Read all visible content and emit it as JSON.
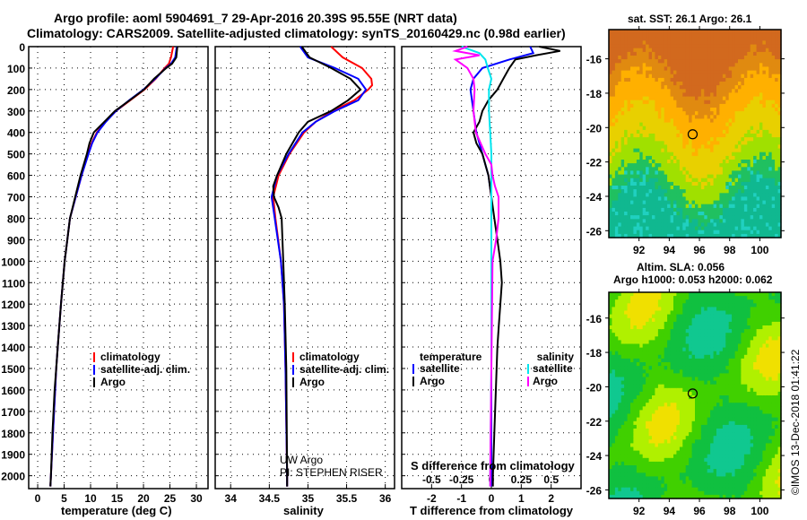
{
  "title": {
    "line1": "Argo profile: aoml 5904691_7 29-Apr-2016 20.39S 95.55E (NRT data)",
    "line2": "Climatology: CARS2009. Satellite-adjusted climatology: synTS_20160429.nc (0.98d earlier)"
  },
  "colors": {
    "climatology": "#ff0000",
    "satellite": "#0000ff",
    "argo": "#000000",
    "sal_satellite": "#00e5ee",
    "sal_argo": "#ff00ff"
  },
  "chart_data": [
    {
      "type": "line",
      "name": "temperature",
      "xlabel": "temperature (deg C)",
      "ylabel": "depth",
      "xlim": [
        -1.7,
        32.2
      ],
      "ylim": [
        0,
        2060
      ],
      "xticks": [
        0,
        5,
        10,
        15,
        20,
        25,
        30
      ],
      "yticks": [
        0,
        100,
        200,
        300,
        400,
        500,
        600,
        700,
        800,
        900,
        1000,
        1100,
        1200,
        1300,
        1400,
        1500,
        1600,
        1700,
        1800,
        1900,
        2000
      ],
      "legend": [
        "climatology",
        "satellite-adj. clim.",
        "Argo"
      ],
      "series": [
        {
          "name": "climatology",
          "color": "#ff0000",
          "depth": [
            0,
            50,
            80,
            100,
            150,
            200,
            250,
            300,
            350,
            400,
            450,
            500,
            600,
            700,
            800,
            900,
            1000,
            1200,
            1400,
            1500,
            1600,
            1800,
            2000,
            2050
          ],
          "values": [
            25.6,
            25.2,
            24.8,
            24,
            22.3,
            20.2,
            17.5,
            14.8,
            12.8,
            11.2,
            10.2,
            9.5,
            8.3,
            7.2,
            6.1,
            5.6,
            5.1,
            4.4,
            3.8,
            3.5,
            3.3,
            2.9,
            2.5,
            2.4
          ]
        },
        {
          "name": "satellite-adj. clim.",
          "color": "#0000ff",
          "depth": [
            0,
            50,
            80,
            100,
            150,
            200,
            250,
            300,
            350,
            400,
            450,
            500,
            600,
            700,
            800,
            900,
            1000,
            1200,
            1400,
            1500,
            1600,
            1800,
            2000,
            2050
          ],
          "values": [
            26.3,
            26,
            25.2,
            24.2,
            22.2,
            20,
            17.3,
            14.8,
            12.9,
            11.3,
            10.3,
            9.6,
            8.3,
            7.2,
            6.1,
            5.6,
            5.1,
            4.4,
            3.8,
            3.5,
            3.3,
            2.9,
            2.5,
            2.4
          ]
        },
        {
          "name": "Argo",
          "color": "#000000",
          "depth": [
            0,
            50,
            80,
            100,
            150,
            200,
            250,
            300,
            350,
            400,
            450,
            500,
            600,
            700,
            800,
            900,
            1000,
            1200,
            1400,
            1500,
            1600,
            1800,
            2000,
            2050
          ],
          "values": [
            26.4,
            26.2,
            25.4,
            24.3,
            22,
            20.1,
            17.4,
            14.6,
            12.6,
            10.6,
            9.8,
            9.3,
            8.1,
            7.1,
            6.1,
            5.6,
            5.1,
            4.4,
            3.8,
            3.5,
            3.2,
            2.8,
            2.5,
            2.4
          ]
        }
      ]
    },
    {
      "type": "line",
      "name": "salinity",
      "xlabel": "salinity",
      "xlim": [
        33.8,
        36.12
      ],
      "ylim": [
        0,
        2060
      ],
      "xticks": [
        34,
        34.5,
        35,
        35.5,
        36
      ],
      "legend": [
        "climatology",
        "satellite-adj. clim.",
        "Argo"
      ],
      "annotation": [
        "UW Argo",
        "PI: STEPHEN RISER"
      ],
      "series": [
        {
          "name": "climatology",
          "color": "#ff0000",
          "depth": [
            0,
            50,
            100,
            150,
            180,
            200,
            250,
            300,
            350,
            400,
            500,
            600,
            700,
            800,
            1000,
            1200,
            1500,
            2000,
            2050
          ],
          "values": [
            35.3,
            35.45,
            35.7,
            35.82,
            35.83,
            35.78,
            35.6,
            35.32,
            35.1,
            34.95,
            34.76,
            34.62,
            34.55,
            34.58,
            34.65,
            34.69,
            34.71,
            34.73,
            34.73
          ]
        },
        {
          "name": "satellite-adj. clim.",
          "color": "#0000ff",
          "depth": [
            0,
            50,
            100,
            150,
            200,
            250,
            300,
            350,
            400,
            500,
            600,
            700,
            800,
            1000,
            1200,
            1500,
            2000,
            2050
          ],
          "values": [
            34.9,
            35.0,
            35.35,
            35.65,
            35.75,
            35.65,
            35.35,
            35.1,
            34.93,
            34.75,
            34.6,
            34.53,
            34.57,
            34.65,
            34.69,
            34.71,
            34.73,
            34.73
          ]
        },
        {
          "name": "Argo",
          "color": "#000000",
          "depth": [
            0,
            50,
            100,
            150,
            200,
            250,
            300,
            350,
            400,
            500,
            600,
            650,
            700,
            750,
            800,
            900,
            1000,
            1200,
            1500,
            2000,
            2050
          ],
          "values": [
            34.92,
            35.02,
            35.3,
            35.55,
            35.68,
            35.52,
            35.3,
            35.0,
            34.88,
            34.72,
            34.6,
            34.55,
            34.56,
            34.62,
            34.66,
            34.67,
            34.68,
            34.7,
            34.72,
            34.73,
            34.73
          ]
        }
      ]
    },
    {
      "type": "line",
      "name": "differences",
      "xlabel": "T difference from climatology",
      "top_label": "S difference from climatology",
      "xlim": [
        -3,
        3
      ],
      "ylim": [
        0,
        2060
      ],
      "xticks": [
        -2,
        -1,
        0,
        1,
        2
      ],
      "s_ticks": [
        -0.5,
        -0.25,
        0,
        0.25,
        0.5
      ],
      "legend_temperature_title": "temperature",
      "legend_salinity_title": "salinity",
      "legend_satellite": "satellite",
      "legend_argo": "Argo",
      "series": [
        {
          "name": "T satellite",
          "color": "#0000ff",
          "unit": "T",
          "depth": [
            0,
            30,
            60,
            100,
            150,
            200,
            300,
            400,
            500,
            600,
            700,
            800,
            1000,
            1500,
            2000,
            2050
          ],
          "values": [
            1.3,
            1.4,
            0.6,
            -0.3,
            -0.6,
            -0.7,
            -0.6,
            -0.5,
            -0.3,
            -0.1,
            0,
            0,
            0,
            0,
            0,
            0
          ]
        },
        {
          "name": "T Argo",
          "color": "#000000",
          "unit": "T",
          "depth": [
            0,
            20,
            40,
            60,
            100,
            150,
            200,
            250,
            300,
            350,
            400,
            450,
            500,
            550,
            600,
            700,
            800,
            900,
            1000,
            1100,
            1200,
            1300,
            1400,
            1600,
            1800,
            2000,
            2050
          ],
          "values": [
            1.6,
            2.3,
            1.5,
            0.8,
            0.6,
            0.4,
            0.2,
            -0.1,
            -0.3,
            -0.4,
            -0.6,
            -0.5,
            -0.3,
            -0.2,
            -0.1,
            0,
            0.1,
            0.2,
            0.3,
            0.35,
            0.3,
            0.25,
            0.2,
            0.15,
            0.1,
            0.05,
            0.05
          ]
        },
        {
          "name": "S satellite",
          "color": "#00e5ee",
          "unit": "S",
          "depth": [
            0,
            30,
            60,
            100,
            150,
            200,
            300,
            400,
            500,
            600,
            700,
            800,
            1000,
            1500,
            2000,
            2050
          ],
          "values": [
            -0.25,
            -0.1,
            -0.05,
            -0.03,
            0,
            -0.02,
            -0.02,
            -0.01,
            0,
            0,
            0,
            0,
            0,
            0,
            -0.01,
            -0.01
          ]
        },
        {
          "name": "S Argo",
          "color": "#ff00ff",
          "unit": "S",
          "depth": [
            0,
            20,
            40,
            60,
            100,
            150,
            200,
            300,
            400,
            500,
            550,
            600,
            650,
            700,
            800,
            900,
            1000,
            1500,
            2000,
            2050
          ],
          "values": [
            -0.2,
            -0.3,
            -0.1,
            -0.3,
            -0.2,
            -0.15,
            -0.14,
            -0.15,
            -0.13,
            -0.05,
            0,
            0.01,
            0.03,
            0.06,
            0.06,
            0.04,
            0.01,
            0,
            -0.01,
            -0.01
          ]
        }
      ]
    },
    {
      "type": "heatmap",
      "name": "sst_map",
      "title": "sat. SST: 26.1 Argo: 26.1",
      "xlim": [
        90,
        101.4
      ],
      "ylim": [
        -26.4,
        -14.3
      ],
      "xticks": [
        92,
        94,
        96,
        98,
        100
      ],
      "yticks": [
        -16,
        -18,
        -20,
        -22,
        -24,
        -26
      ],
      "marker": {
        "lon": 95.55,
        "lat": -20.39
      }
    },
    {
      "type": "heatmap",
      "name": "sla_map",
      "title": "Altim. SLA: 0.056",
      "subtitle": "Argo h1000: 0.053 h2000: 0.062",
      "xlim": [
        90,
        101.4
      ],
      "ylim": [
        -26.5,
        -14.5
      ],
      "xticks": [
        92,
        94,
        96,
        98,
        100
      ],
      "yticks": [
        -16,
        -18,
        -20,
        -22,
        -24,
        -26
      ],
      "marker": {
        "lon": 95.55,
        "lat": -20.39
      }
    }
  ],
  "credit": "©IMOS 13-Dec-2018 01:41:22"
}
